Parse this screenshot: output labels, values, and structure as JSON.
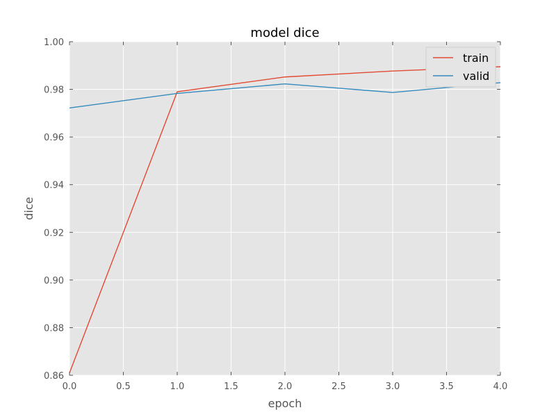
{
  "chart_data": {
    "type": "line",
    "title": "model dice",
    "xlabel": "epoch",
    "ylabel": "dice",
    "xlim": [
      0.0,
      4.0
    ],
    "ylim": [
      0.86,
      1.0
    ],
    "x_ticks": [
      "0.0",
      "0.5",
      "1.0",
      "1.5",
      "2.0",
      "2.5",
      "3.0",
      "3.5",
      "4.0"
    ],
    "y_ticks": [
      "0.86",
      "0.88",
      "0.90",
      "0.92",
      "0.94",
      "0.96",
      "0.98",
      "1.00"
    ],
    "grid": true,
    "legend_position": "top-right",
    "x": [
      0,
      1,
      2,
      3,
      4
    ],
    "series": [
      {
        "name": "train",
        "color": "#E24A33",
        "values": [
          0.861,
          0.979,
          0.9852,
          0.9877,
          0.9895
        ]
      },
      {
        "name": "valid",
        "color": "#348ABD",
        "values": [
          0.9722,
          0.9783,
          0.9823,
          0.9787,
          0.9828
        ]
      }
    ],
    "colors": {
      "plot_background": "#E5E5E5",
      "grid": "#FFFFFF"
    }
  }
}
